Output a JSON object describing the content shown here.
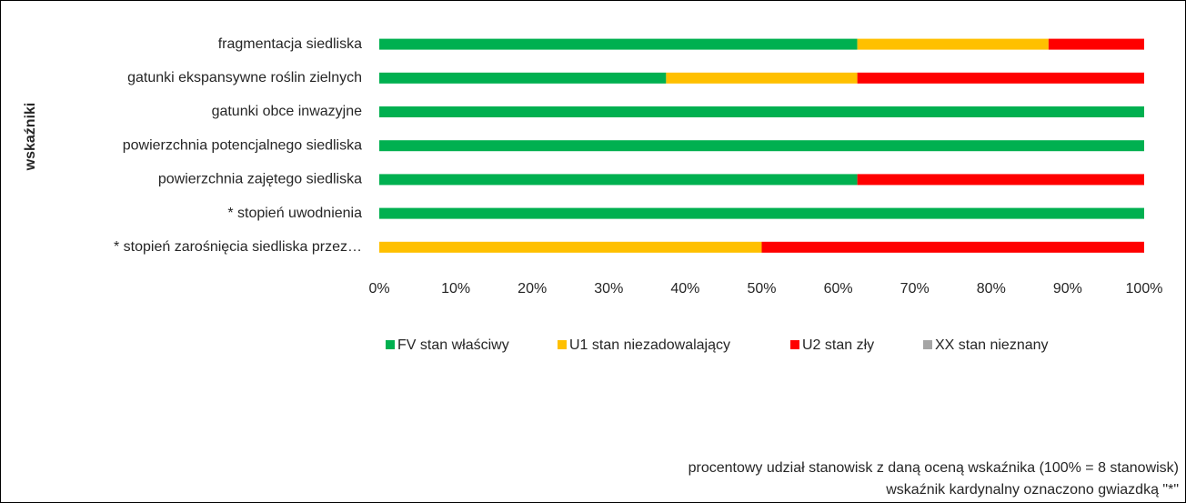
{
  "chart_data": {
    "type": "stacked_bar_horizontal",
    "y_axis_label": "wskaźniki",
    "categories": [
      "fragmentacja siedliska",
      "gatunki ekspansywne roślin zielnych",
      "gatunki obce inwazyjne",
      "powierzchnia potencjalnego siedliska",
      "powierzchnia zajętego siedliska",
      "* stopień uwodnienia",
      "* stopień zarośnięcia siedliska przez…"
    ],
    "series": [
      {
        "name": "FV stan właściwy",
        "color": "#00b050",
        "values": [
          62.5,
          37.5,
          100,
          100,
          62.5,
          100,
          0
        ]
      },
      {
        "name": "U1 stan niezadowalający",
        "color": "#ffc000",
        "values": [
          25,
          25,
          0,
          0,
          0,
          0,
          50
        ]
      },
      {
        "name": "U2 stan zły",
        "color": "#ff0000",
        "values": [
          12.5,
          37.5,
          0,
          0,
          37.5,
          0,
          50
        ]
      },
      {
        "name": "XX stan nieznany",
        "color": "#a5a5a5",
        "values": [
          0,
          0,
          0,
          0,
          0,
          0,
          0
        ]
      }
    ],
    "xlim": [
      0,
      100
    ],
    "xticks": [
      {
        "value": 0,
        "label": "0%"
      },
      {
        "value": 10,
        "label": "10%"
      },
      {
        "value": 20,
        "label": "20%"
      },
      {
        "value": 30,
        "label": "30%"
      },
      {
        "value": 40,
        "label": "40%"
      },
      {
        "value": 50,
        "label": "50%"
      },
      {
        "value": 60,
        "label": "60%"
      },
      {
        "value": 70,
        "label": "70%"
      },
      {
        "value": 80,
        "label": "80%"
      },
      {
        "value": 90,
        "label": "90%"
      },
      {
        "value": 100,
        "label": "100%"
      }
    ],
    "legend": "bottom",
    "notes": [
      "procentowy udział stanowisk z daną oceną wskaźnika (100% = 8 stanowisk)",
      "wskaźnik kardynalny oznaczono gwiazdką \"*\""
    ]
  }
}
